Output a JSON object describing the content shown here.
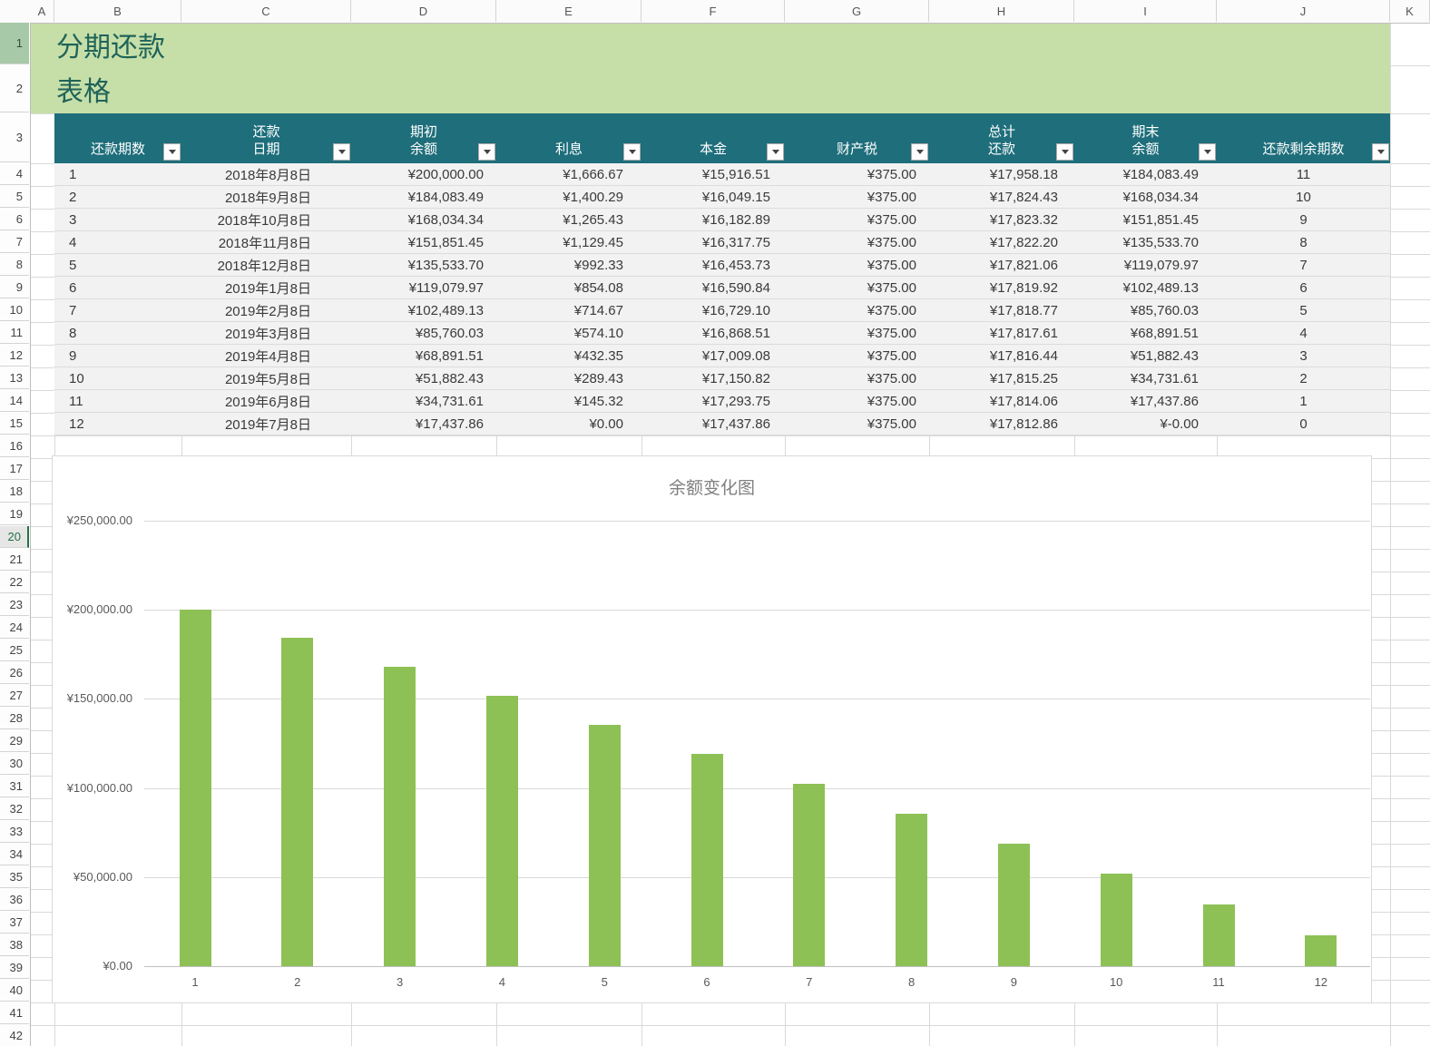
{
  "sheet": {
    "column_letters": [
      "A",
      "B",
      "C",
      "D",
      "E",
      "F",
      "G",
      "H",
      "I",
      "J",
      "K"
    ],
    "first_row": 1,
    "last_row": 42,
    "tinted_row_header": 1,
    "active_row_header": 20
  },
  "title": {
    "line1": "分期还款",
    "line2": "表格"
  },
  "colors": {
    "title_band_green": "#c6dfa8",
    "title_text_teal": "#1f6359",
    "header_teal": "#1e6e7b",
    "row_fill_gray": "#f2f2f3",
    "selection_green": "#217346",
    "bar_green": "#8ec155"
  },
  "table": {
    "headers": [
      {
        "lines": [
          "还款期数"
        ]
      },
      {
        "lines": [
          "还款",
          "日期"
        ]
      },
      {
        "lines": [
          "期初",
          "余额"
        ]
      },
      {
        "lines": [
          "利息"
        ]
      },
      {
        "lines": [
          "本金"
        ]
      },
      {
        "lines": [
          "财产税"
        ]
      },
      {
        "lines": [
          "总计",
          "还款"
        ]
      },
      {
        "lines": [
          "期末",
          "余额"
        ]
      },
      {
        "lines": [
          "还款剩余期数"
        ]
      }
    ],
    "rows": [
      [
        "1",
        "2018年8月8日",
        "¥200,000.00",
        "¥1,666.67",
        "¥15,916.51",
        "¥375.00",
        "¥17,958.18",
        "¥184,083.49",
        "11"
      ],
      [
        "2",
        "2018年9月8日",
        "¥184,083.49",
        "¥1,400.29",
        "¥16,049.15",
        "¥375.00",
        "¥17,824.43",
        "¥168,034.34",
        "10"
      ],
      [
        "3",
        "2018年10月8日",
        "¥168,034.34",
        "¥1,265.43",
        "¥16,182.89",
        "¥375.00",
        "¥17,823.32",
        "¥151,851.45",
        "9"
      ],
      [
        "4",
        "2018年11月8日",
        "¥151,851.45",
        "¥1,129.45",
        "¥16,317.75",
        "¥375.00",
        "¥17,822.20",
        "¥135,533.70",
        "8"
      ],
      [
        "5",
        "2018年12月8日",
        "¥135,533.70",
        "¥992.33",
        "¥16,453.73",
        "¥375.00",
        "¥17,821.06",
        "¥119,079.97",
        "7"
      ],
      [
        "6",
        "2019年1月8日",
        "¥119,079.97",
        "¥854.08",
        "¥16,590.84",
        "¥375.00",
        "¥17,819.92",
        "¥102,489.13",
        "6"
      ],
      [
        "7",
        "2019年2月8日",
        "¥102,489.13",
        "¥714.67",
        "¥16,729.10",
        "¥375.00",
        "¥17,818.77",
        "¥85,760.03",
        "5"
      ],
      [
        "8",
        "2019年3月8日",
        "¥85,760.03",
        "¥574.10",
        "¥16,868.51",
        "¥375.00",
        "¥17,817.61",
        "¥68,891.51",
        "4"
      ],
      [
        "9",
        "2019年4月8日",
        "¥68,891.51",
        "¥432.35",
        "¥17,009.08",
        "¥375.00",
        "¥17,816.44",
        "¥51,882.43",
        "3"
      ],
      [
        "10",
        "2019年5月8日",
        "¥51,882.43",
        "¥289.43",
        "¥17,150.82",
        "¥375.00",
        "¥17,815.25",
        "¥34,731.61",
        "2"
      ],
      [
        "11",
        "2019年6月8日",
        "¥34,731.61",
        "¥145.32",
        "¥17,293.75",
        "¥375.00",
        "¥17,814.06",
        "¥17,437.86",
        "1"
      ],
      [
        "12",
        "2019年7月8日",
        "¥17,437.86",
        "¥0.00",
        "¥17,437.86",
        "¥375.00",
        "¥17,812.86",
        "¥-0.00",
        "0"
      ]
    ]
  },
  "chart_data": {
    "type": "bar",
    "title": "余额变化图",
    "categories": [
      "1",
      "2",
      "3",
      "4",
      "5",
      "6",
      "7",
      "8",
      "9",
      "10",
      "11",
      "12"
    ],
    "values": [
      200000,
      184083.49,
      168034.34,
      151851.45,
      135533.7,
      119079.97,
      102489.13,
      85760.03,
      68891.51,
      51882.43,
      34731.61,
      17437.86
    ],
    "y_tick_labels": [
      "¥0.00",
      "¥50,000.00",
      "¥100,000.00",
      "¥150,000.00",
      "¥200,000.00",
      "¥250,000.00"
    ],
    "ylim": [
      0,
      250000
    ],
    "xlabel": "",
    "ylabel": "",
    "grid": "on",
    "legend": "none",
    "bar_color": "#8ec155"
  }
}
